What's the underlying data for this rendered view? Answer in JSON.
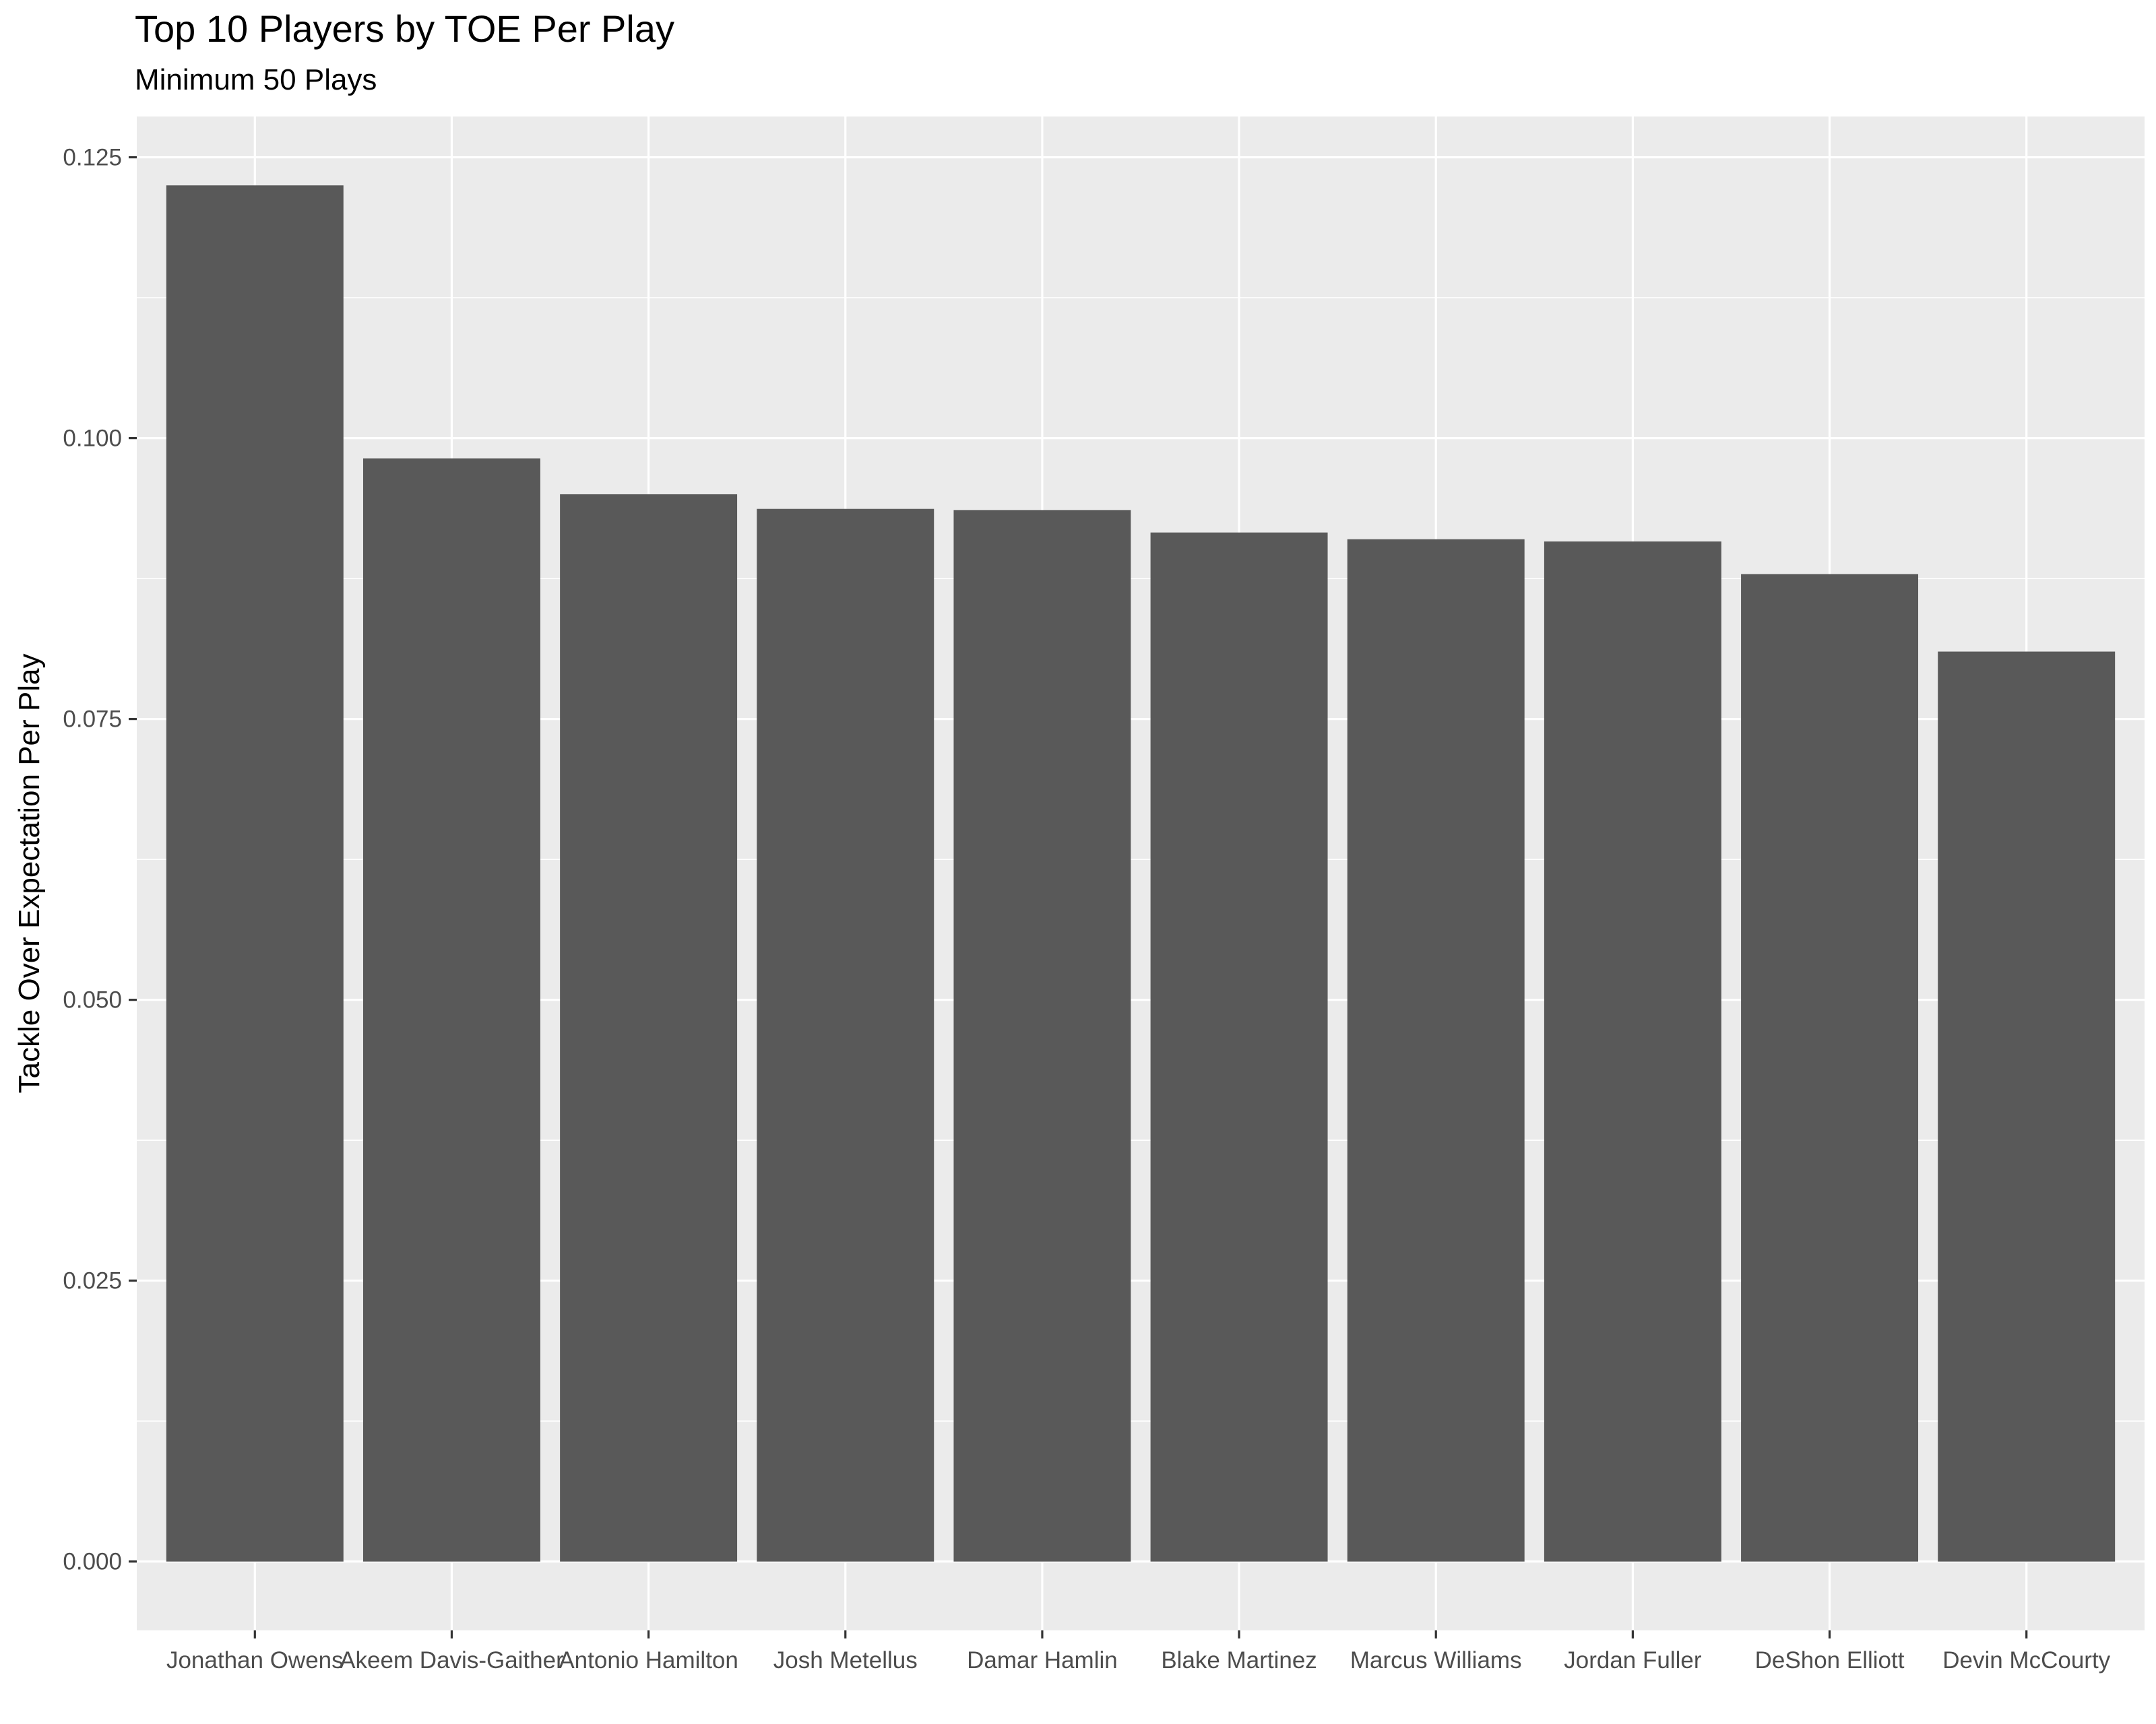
{
  "chart_data": {
    "type": "bar",
    "title": "Top 10 Players by TOE Per Play",
    "subtitle": "Minimum 50 Plays",
    "xlabel": "",
    "ylabel": "Tackle Over Expectation Per Play",
    "categories": [
      "Jonathan Owens",
      "Akeem Davis-Gaither",
      "Antonio Hamilton",
      "Josh Metellus",
      "Damar Hamlin",
      "Blake Martinez",
      "Marcus Williams",
      "Jordan Fuller",
      "DeShon Elliott",
      "Devin McCourty"
    ],
    "values": [
      0.1225,
      0.0982,
      0.095,
      0.0937,
      0.0936,
      0.0916,
      0.091,
      0.0908,
      0.0879,
      0.081
    ],
    "y_ticks": [
      0.0,
      0.025,
      0.05,
      0.075,
      0.1,
      0.125
    ],
    "y_tick_labels": [
      "0.000",
      "0.025",
      "0.050",
      "0.075",
      "0.100",
      "0.125"
    ],
    "ylim": [
      -0.00613,
      0.12863
    ],
    "grid": true,
    "legend": "none",
    "colors": {
      "bar": "#595959",
      "panel": "#ebebeb",
      "grid": "#ffffff"
    }
  }
}
